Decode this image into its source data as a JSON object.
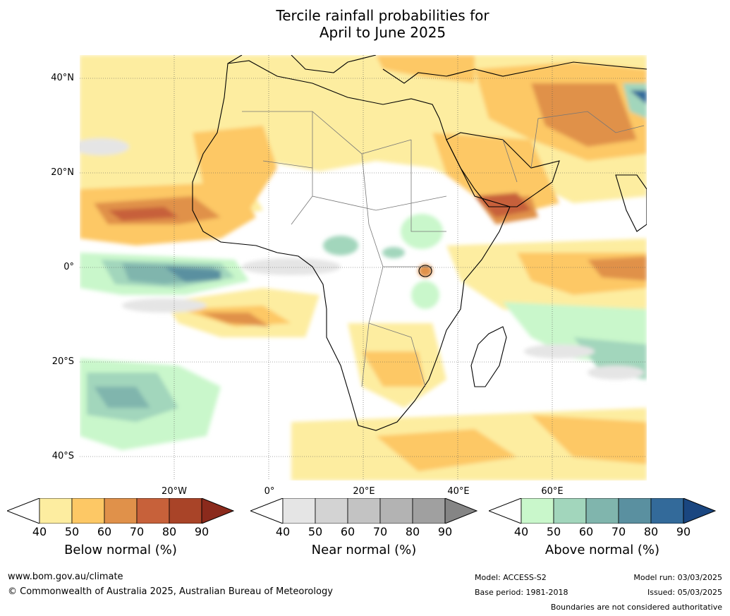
{
  "title": {
    "line1": "Tercile rainfall probabilities for",
    "line2": "April to June 2025"
  },
  "latitude_labels": [
    "40°N",
    "20°N",
    "0°",
    "20°S",
    "40°S"
  ],
  "longitude_labels": [
    "20°W",
    "0°",
    "20°E",
    "40°E",
    "60°E"
  ],
  "colorbars": [
    {
      "title": "Below normal (%)",
      "ticks": [
        "40",
        "50",
        "60",
        "70",
        "80",
        "90"
      ],
      "colors": [
        "#ffffff",
        "#fdeda0",
        "#fdc865",
        "#e0914a",
        "#c7613a",
        "#a94428",
        "#8b2a1c"
      ]
    },
    {
      "title": "Near normal (%)",
      "ticks": [
        "40",
        "50",
        "60",
        "70",
        "80",
        "90"
      ],
      "colors": [
        "#ffffff",
        "#e5e5e5",
        "#d3d3d3",
        "#c3c3c3",
        "#b3b3b3",
        "#a0a0a0",
        "#858585"
      ]
    },
    {
      "title": "Above normal (%)",
      "ticks": [
        "40",
        "50",
        "60",
        "70",
        "80",
        "90"
      ],
      "colors": [
        "#ffffff",
        "#c9f7cb",
        "#a2d6bc",
        "#80b5ad",
        "#5a90a0",
        "#336a9a",
        "#1a4680"
      ]
    }
  ],
  "footer": {
    "website": "www.bom.gov.au/climate",
    "copyright": "© Commonwealth of Australia 2025, Australian Bureau of Meteorology",
    "model": "Model: ACCESS-S2",
    "base_period": "Base period: 1981-2018",
    "model_run": "Model run: 03/03/2025",
    "issued": "Issued: 05/03/2025",
    "disclaimer": "Boundaries are not considered authoritative"
  }
}
